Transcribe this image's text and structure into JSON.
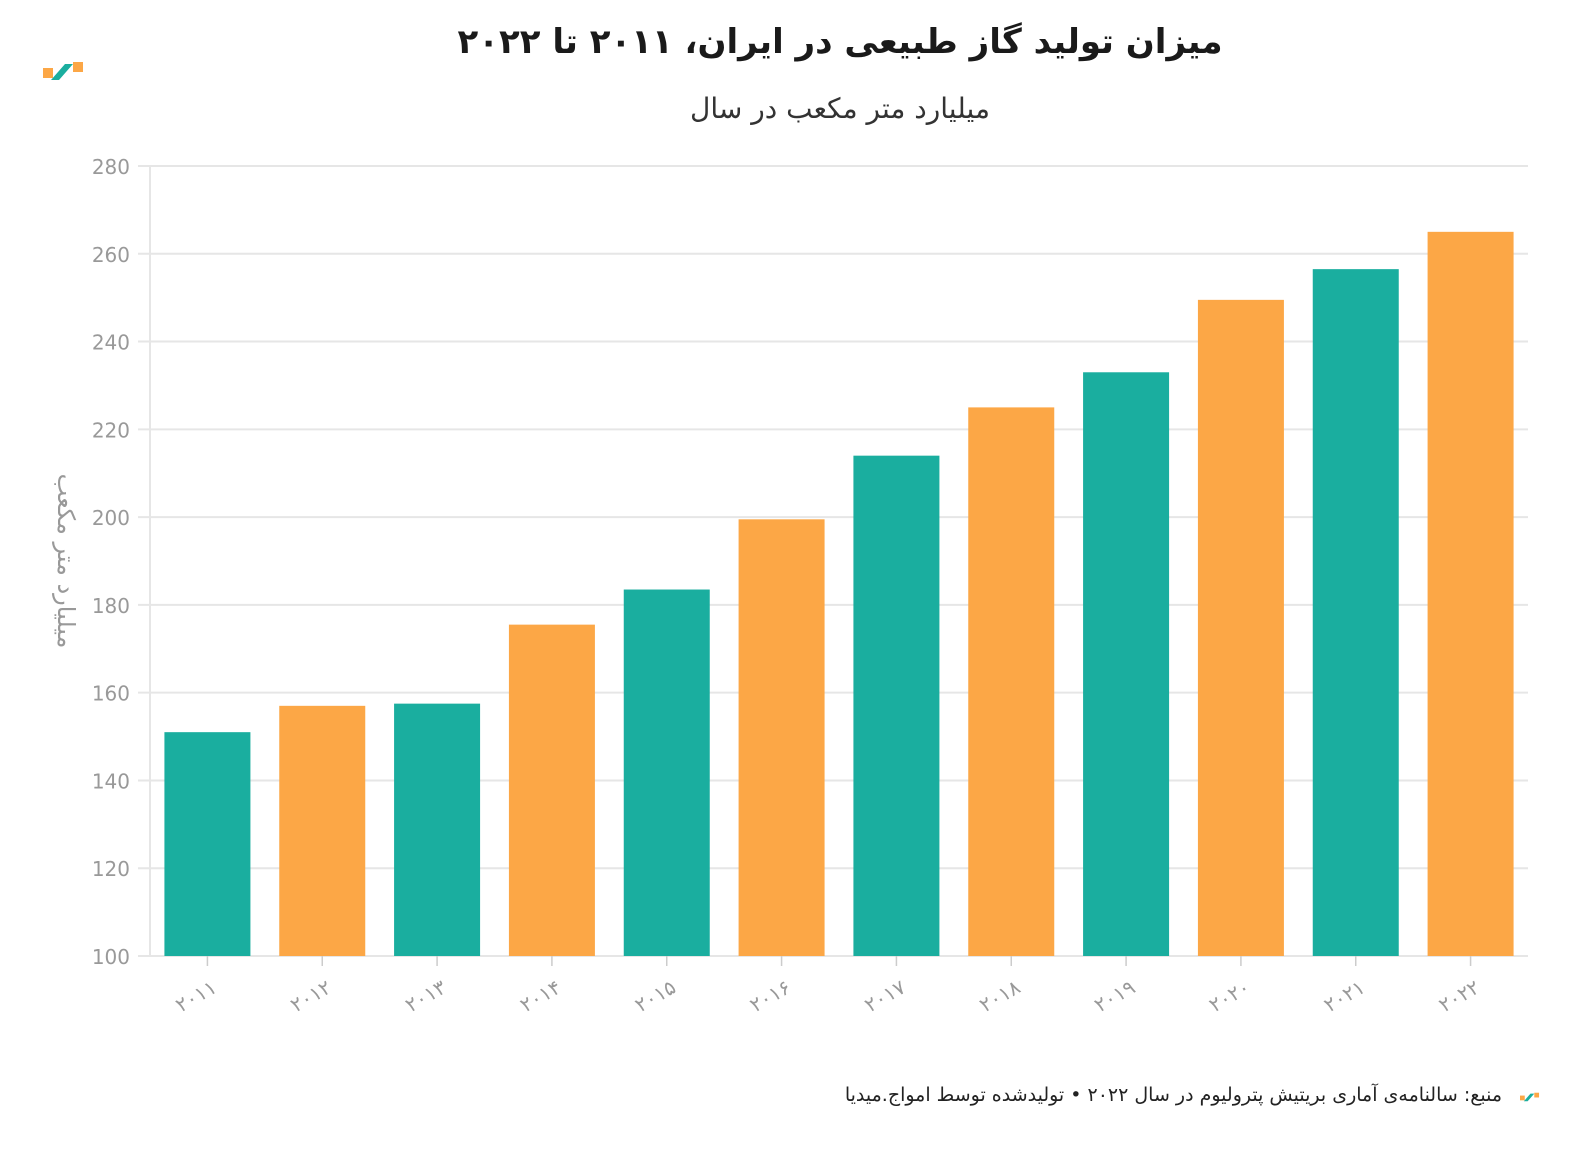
{
  "header": {
    "title": "میزان تولید گاز طبیعی در ایران، ۲۰۱۱ تا ۲۰۲۲",
    "subtitle": "میلیارد متر مکعب در سال",
    "logo_icon": "amwaj-logo-icon"
  },
  "footer": {
    "source": "منبع: سالنامه‌ی آماری بریتیش پترولیوم در سال ۲۰۲۲ • تولیدشده توسط امواج.میدیا",
    "logo_icon": "amwaj-logo-icon"
  },
  "colors": {
    "teal": "#1aae9f",
    "orange": "#fca746",
    "grid": "#e6e6e6",
    "tick": "#999999"
  },
  "chart_data": {
    "type": "bar",
    "title": "میزان تولید گاز طبیعی در ایران، ۲۰۱۱ تا ۲۰۲۲",
    "subtitle": "میلیارد متر مکعب در سال",
    "ylabel": "میلیارد متر مکعب",
    "xlabel": "",
    "ylim": [
      100,
      280
    ],
    "yticks": [
      100,
      120,
      140,
      160,
      180,
      200,
      220,
      240,
      260,
      280
    ],
    "categories": [
      "۲۰۱۱",
      "۲۰۱۲",
      "۲۰۱۳",
      "۲۰۱۴",
      "۲۰۱۵",
      "۲۰۱۶",
      "۲۰۱۷",
      "۲۰۱۸",
      "۲۰۱۹",
      "۲۰۲۰",
      "۲۰۲۱",
      "۲۰۲۲"
    ],
    "values": [
      151,
      157,
      157.5,
      175.5,
      183.5,
      199.5,
      214,
      225,
      233,
      249.5,
      256.5,
      265
    ],
    "bar_colors": [
      "teal",
      "orange",
      "teal",
      "orange",
      "teal",
      "orange",
      "teal",
      "orange",
      "teal",
      "orange",
      "teal",
      "orange"
    ],
    "grid": true
  }
}
